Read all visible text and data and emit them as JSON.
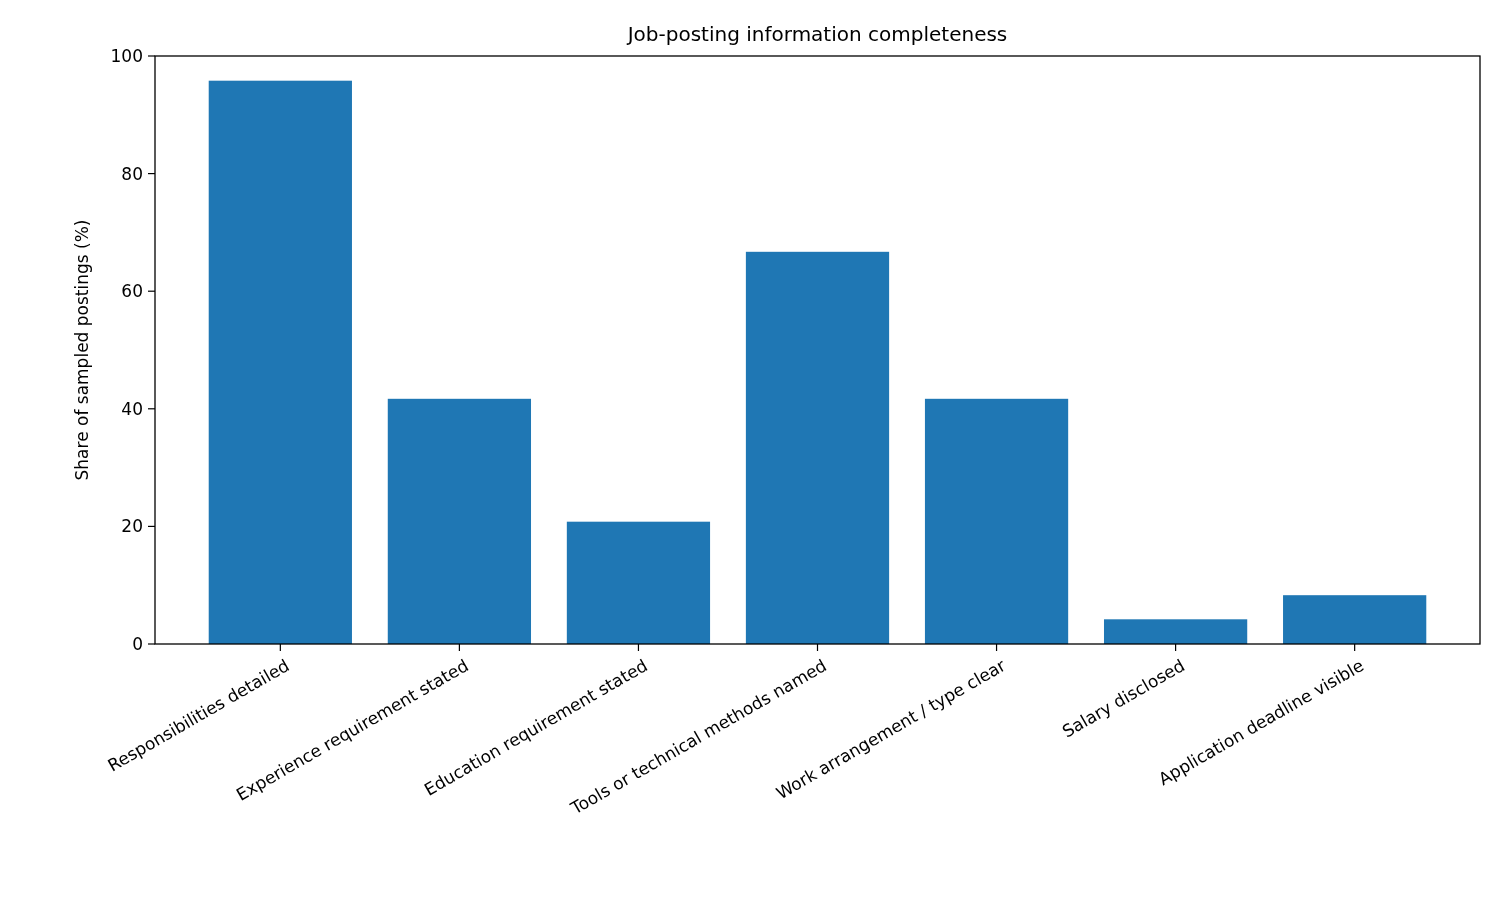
{
  "chart_data": {
    "type": "bar",
    "title": "Job-posting information completeness",
    "ylabel": "Share of sampled postings (%)",
    "categories": [
      "Responsibilities detailed",
      "Experience requirement stated",
      "Education requirement stated",
      "Tools or technical methods named",
      "Work arrangement / type clear",
      "Salary disclosed",
      "Application deadline visible"
    ],
    "values": [
      95.8,
      41.7,
      20.8,
      66.7,
      41.7,
      4.2,
      8.3
    ],
    "color": "#1f77b4",
    "ylim": [
      0,
      100
    ],
    "yticks": [
      0,
      20,
      40,
      60,
      80,
      100
    ],
    "grid": false
  }
}
